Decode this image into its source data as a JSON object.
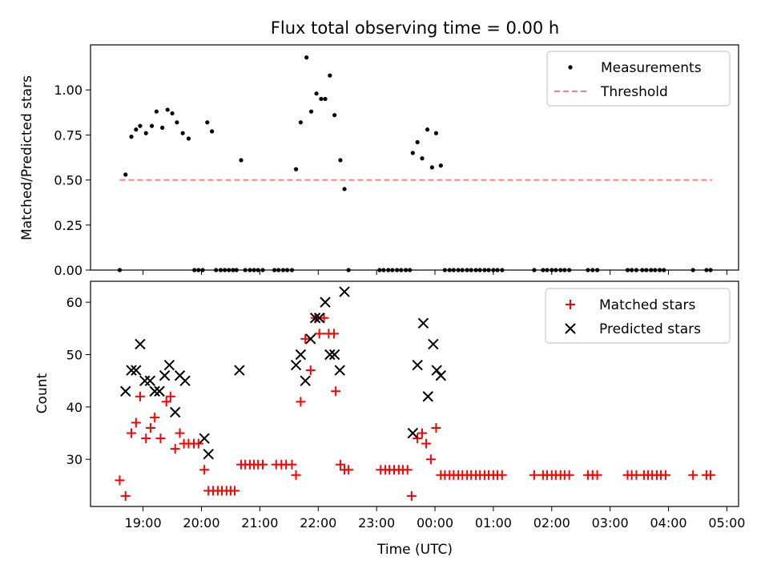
{
  "figure": {
    "title": "Flux total observing time = 0.00 h"
  },
  "chart_data": [
    {
      "type": "scatter",
      "ylabel": "Matched/Predicted stars",
      "xlabel": "",
      "xlim_hours": [
        18.1,
        29.2
      ],
      "ylim": [
        0,
        1.25
      ],
      "yticks": [
        "0.00",
        "0.25",
        "0.50",
        "0.75",
        "1.00"
      ],
      "x_ticks_hours": [
        19,
        20,
        21,
        22,
        23,
        24,
        25,
        26,
        27,
        28,
        29
      ],
      "x_tick_labels_shown": false,
      "grid": false,
      "legend_position": "top-right",
      "series": [
        {
          "name": "Measurements",
          "marker": "dot",
          "color": "#000000",
          "points": [
            [
              18.6,
              0.0
            ],
            [
              18.7,
              0.53
            ],
            [
              18.8,
              0.74
            ],
            [
              18.88,
              0.78
            ],
            [
              18.95,
              0.8
            ],
            [
              19.05,
              0.76
            ],
            [
              19.15,
              0.8
            ],
            [
              19.23,
              0.88
            ],
            [
              19.33,
              0.79
            ],
            [
              19.42,
              0.89
            ],
            [
              19.5,
              0.87
            ],
            [
              19.58,
              0.82
            ],
            [
              19.68,
              0.76
            ],
            [
              19.78,
              0.73
            ],
            [
              19.88,
              0.0
            ],
            [
              19.95,
              0.0
            ],
            [
              20.02,
              0.0
            ],
            [
              20.1,
              0.82
            ],
            [
              20.18,
              0.77
            ],
            [
              20.25,
              0.0
            ],
            [
              20.33,
              0.0
            ],
            [
              20.4,
              0.0
            ],
            [
              20.47,
              0.0
            ],
            [
              20.54,
              0.0
            ],
            [
              20.6,
              0.0
            ],
            [
              20.68,
              0.61
            ],
            [
              20.75,
              0.0
            ],
            [
              20.83,
              0.0
            ],
            [
              20.9,
              0.0
            ],
            [
              20.97,
              0.0
            ],
            [
              21.05,
              0.0
            ],
            [
              21.25,
              0.0
            ],
            [
              21.32,
              0.0
            ],
            [
              21.4,
              0.0
            ],
            [
              21.47,
              0.0
            ],
            [
              21.55,
              0.0
            ],
            [
              21.62,
              0.56
            ],
            [
              21.7,
              0.82
            ],
            [
              21.8,
              1.18
            ],
            [
              21.88,
              0.88
            ],
            [
              21.97,
              0.98
            ],
            [
              22.05,
              0.95
            ],
            [
              22.12,
              0.95
            ],
            [
              22.2,
              1.08
            ],
            [
              22.28,
              0.86
            ],
            [
              22.38,
              0.61
            ],
            [
              22.45,
              0.45
            ],
            [
              22.52,
              0.0
            ],
            [
              23.05,
              0.0
            ],
            [
              23.12,
              0.0
            ],
            [
              23.2,
              0.0
            ],
            [
              23.27,
              0.0
            ],
            [
              23.35,
              0.0
            ],
            [
              23.42,
              0.0
            ],
            [
              23.5,
              0.0
            ],
            [
              23.57,
              0.0
            ],
            [
              23.62,
              0.65
            ],
            [
              23.7,
              0.71
            ],
            [
              23.78,
              0.62
            ],
            [
              23.87,
              0.78
            ],
            [
              23.95,
              0.57
            ],
            [
              24.02,
              0.76
            ],
            [
              24.1,
              0.58
            ],
            [
              24.17,
              0.0
            ],
            [
              24.25,
              0.0
            ],
            [
              24.32,
              0.0
            ],
            [
              24.4,
              0.0
            ],
            [
              24.47,
              0.0
            ],
            [
              24.55,
              0.0
            ],
            [
              24.62,
              0.0
            ],
            [
              24.7,
              0.0
            ],
            [
              24.77,
              0.0
            ],
            [
              24.85,
              0.0
            ],
            [
              24.92,
              0.0
            ],
            [
              25.0,
              0.0
            ],
            [
              25.07,
              0.0
            ],
            [
              25.15,
              0.0
            ],
            [
              25.7,
              0.0
            ],
            [
              25.85,
              0.0
            ],
            [
              25.92,
              0.0
            ],
            [
              26.0,
              0.0
            ],
            [
              26.07,
              0.0
            ],
            [
              26.15,
              0.0
            ],
            [
              26.22,
              0.0
            ],
            [
              26.3,
              0.0
            ],
            [
              26.62,
              0.0
            ],
            [
              26.7,
              0.0
            ],
            [
              26.78,
              0.0
            ],
            [
              27.3,
              0.0
            ],
            [
              27.37,
              0.0
            ],
            [
              27.45,
              0.0
            ],
            [
              27.55,
              0.0
            ],
            [
              27.62,
              0.0
            ],
            [
              27.7,
              0.0
            ],
            [
              27.77,
              0.0
            ],
            [
              27.85,
              0.0
            ],
            [
              27.92,
              0.0
            ],
            [
              28.42,
              0.0
            ],
            [
              28.65,
              0.0
            ],
            [
              28.72,
              0.0
            ]
          ]
        },
        {
          "name": "Threshold",
          "marker": "dashed-line",
          "color": "#ff7f7f",
          "points": [
            [
              18.6,
              0.5
            ],
            [
              28.75,
              0.5
            ]
          ]
        }
      ]
    },
    {
      "type": "scatter",
      "ylabel": "Count",
      "xlabel": "Time (UTC)",
      "xlim_hours": [
        18.1,
        29.2
      ],
      "ylim": [
        21,
        64
      ],
      "yticks": [
        "30",
        "40",
        "50",
        "60"
      ],
      "x_ticks_hours": [
        19,
        20,
        21,
        22,
        23,
        24,
        25,
        26,
        27,
        28,
        29
      ],
      "x_tick_labels": [
        "19:00",
        "20:00",
        "21:00",
        "22:00",
        "23:00",
        "00:00",
        "01:00",
        "02:00",
        "03:00",
        "04:00",
        "05:00"
      ],
      "grid": false,
      "legend_position": "top-right",
      "series": [
        {
          "name": "Matched stars",
          "marker": "plus",
          "color": "#ff0000",
          "points": [
            [
              18.6,
              26
            ],
            [
              18.7,
              23
            ],
            [
              18.8,
              35
            ],
            [
              18.88,
              37
            ],
            [
              18.95,
              42
            ],
            [
              19.05,
              34
            ],
            [
              19.13,
              36
            ],
            [
              19.2,
              38
            ],
            [
              19.3,
              34
            ],
            [
              19.4,
              41
            ],
            [
              19.47,
              42
            ],
            [
              19.55,
              32
            ],
            [
              19.63,
              35
            ],
            [
              19.7,
              33
            ],
            [
              19.78,
              33
            ],
            [
              19.87,
              33
            ],
            [
              19.95,
              33
            ],
            [
              20.05,
              28
            ],
            [
              20.12,
              24
            ],
            [
              20.2,
              24
            ],
            [
              20.28,
              24
            ],
            [
              20.35,
              24
            ],
            [
              20.43,
              24
            ],
            [
              20.5,
              24
            ],
            [
              20.57,
              24
            ],
            [
              20.68,
              29
            ],
            [
              20.75,
              29
            ],
            [
              20.83,
              29
            ],
            [
              20.9,
              29
            ],
            [
              20.97,
              29
            ],
            [
              21.05,
              29
            ],
            [
              21.28,
              29
            ],
            [
              21.37,
              29
            ],
            [
              21.45,
              29
            ],
            [
              21.55,
              29
            ],
            [
              21.62,
              27
            ],
            [
              21.7,
              41
            ],
            [
              21.78,
              53
            ],
            [
              21.87,
              47
            ],
            [
              21.95,
              57
            ],
            [
              22.02,
              54
            ],
            [
              22.1,
              57
            ],
            [
              22.18,
              54
            ],
            [
              22.27,
              54
            ],
            [
              22.3,
              43
            ],
            [
              22.38,
              29
            ],
            [
              22.45,
              28
            ],
            [
              22.52,
              28
            ],
            [
              23.07,
              28
            ],
            [
              23.15,
              28
            ],
            [
              23.22,
              28
            ],
            [
              23.3,
              28
            ],
            [
              23.38,
              28
            ],
            [
              23.45,
              28
            ],
            [
              23.53,
              28
            ],
            [
              23.6,
              23
            ],
            [
              23.7,
              34
            ],
            [
              23.78,
              35
            ],
            [
              23.85,
              33
            ],
            [
              23.93,
              30
            ],
            [
              24.02,
              36
            ],
            [
              24.1,
              27
            ],
            [
              24.17,
              27
            ],
            [
              24.25,
              27
            ],
            [
              24.32,
              27
            ],
            [
              24.4,
              27
            ],
            [
              24.47,
              27
            ],
            [
              24.55,
              27
            ],
            [
              24.62,
              27
            ],
            [
              24.7,
              27
            ],
            [
              24.77,
              27
            ],
            [
              24.85,
              27
            ],
            [
              24.92,
              27
            ],
            [
              25.0,
              27
            ],
            [
              25.07,
              27
            ],
            [
              25.15,
              27
            ],
            [
              25.7,
              27
            ],
            [
              25.85,
              27
            ],
            [
              25.92,
              27
            ],
            [
              26.0,
              27
            ],
            [
              26.07,
              27
            ],
            [
              26.15,
              27
            ],
            [
              26.22,
              27
            ],
            [
              26.3,
              27
            ],
            [
              26.62,
              27
            ],
            [
              26.7,
              27
            ],
            [
              26.78,
              27
            ],
            [
              27.3,
              27
            ],
            [
              27.37,
              27
            ],
            [
              27.45,
              27
            ],
            [
              27.58,
              27
            ],
            [
              27.65,
              27
            ],
            [
              27.72,
              27
            ],
            [
              27.8,
              27
            ],
            [
              27.87,
              27
            ],
            [
              27.95,
              27
            ],
            [
              28.42,
              27
            ],
            [
              28.65,
              27
            ],
            [
              28.72,
              27
            ]
          ]
        },
        {
          "name": "Predicted stars",
          "marker": "x",
          "color": "#000000",
          "points": [
            [
              18.7,
              43
            ],
            [
              18.8,
              47
            ],
            [
              18.88,
              47
            ],
            [
              18.95,
              52
            ],
            [
              19.03,
              45
            ],
            [
              19.12,
              45
            ],
            [
              19.2,
              43
            ],
            [
              19.28,
              43
            ],
            [
              19.37,
              46
            ],
            [
              19.45,
              48
            ],
            [
              19.55,
              39
            ],
            [
              19.63,
              46
            ],
            [
              19.72,
              45
            ],
            [
              20.05,
              34
            ],
            [
              20.12,
              31
            ],
            [
              20.65,
              47
            ],
            [
              21.62,
              48
            ],
            [
              21.7,
              50
            ],
            [
              21.78,
              45
            ],
            [
              21.87,
              53
            ],
            [
              21.95,
              57
            ],
            [
              22.02,
              57
            ],
            [
              22.12,
              60
            ],
            [
              22.2,
              50
            ],
            [
              22.28,
              50
            ],
            [
              22.37,
              47
            ],
            [
              22.45,
              62
            ],
            [
              23.62,
              35
            ],
            [
              23.7,
              48
            ],
            [
              23.8,
              56
            ],
            [
              23.88,
              42
            ],
            [
              23.97,
              52
            ],
            [
              24.03,
              47
            ],
            [
              24.1,
              46
            ]
          ]
        }
      ]
    }
  ]
}
